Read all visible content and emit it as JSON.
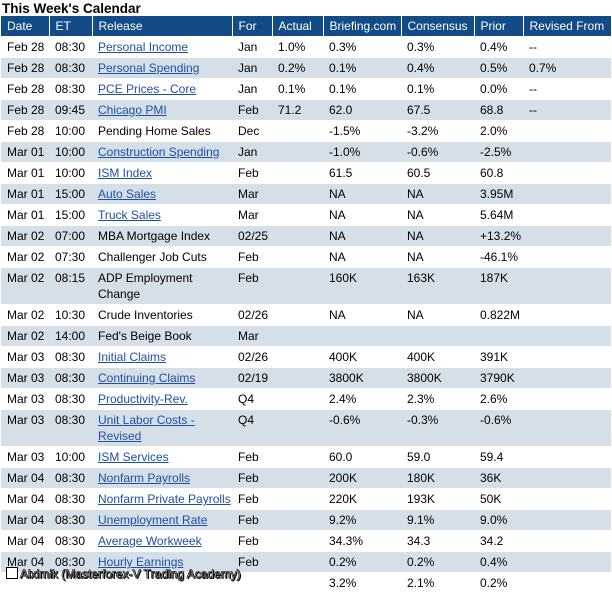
{
  "title": "This Week's Calendar",
  "columns": [
    "Date",
    "ET",
    "Release",
    "For",
    "Actual",
    "Briefing.com",
    "Consensus",
    "Prior",
    "Revised From"
  ],
  "rows": [
    {
      "date": "Feb 28",
      "et": "08:30",
      "release": "Personal Income",
      "link": true,
      "for": "Jan",
      "actual": "1.0%",
      "briefing": "0.3%",
      "consensus": "0.3%",
      "prior": "0.4%",
      "revised": "--"
    },
    {
      "date": "Feb 28",
      "et": "08:30",
      "release": "Personal Spending",
      "link": true,
      "for": "Jan",
      "actual": "0.2%",
      "briefing": "0.1%",
      "consensus": "0.4%",
      "prior": "0.5%",
      "revised": "0.7%"
    },
    {
      "date": "Feb 28",
      "et": "08:30",
      "release": "PCE Prices - Core",
      "link": true,
      "for": "Jan",
      "actual": "0.1%",
      "briefing": "0.1%",
      "consensus": "0.1%",
      "prior": "0.0%",
      "revised": "--"
    },
    {
      "date": "Feb 28",
      "et": "09:45",
      "release": "Chicago PMI",
      "link": true,
      "for": "Feb",
      "actual": "71.2",
      "briefing": "62.0",
      "consensus": "67.5",
      "prior": "68.8",
      "revised": "--"
    },
    {
      "date": "Feb 28",
      "et": "10:00",
      "release": "Pending Home Sales",
      "link": false,
      "for": "Dec",
      "actual": "",
      "briefing": "-1.5%",
      "consensus": "-3.2%",
      "prior": "2.0%",
      "revised": ""
    },
    {
      "date": "Mar 01",
      "et": "10:00",
      "release": "Construction Spending",
      "link": true,
      "for": "Jan",
      "actual": "",
      "briefing": "-1.0%",
      "consensus": "-0.6%",
      "prior": "-2.5%",
      "revised": ""
    },
    {
      "date": "Mar 01",
      "et": "10:00",
      "release": "ISM Index",
      "link": true,
      "for": "Feb",
      "actual": "",
      "briefing": "61.5",
      "consensus": "60.5",
      "prior": "60.8",
      "revised": ""
    },
    {
      "date": "Mar 01",
      "et": "15:00",
      "release": "Auto Sales",
      "link": true,
      "for": "Mar",
      "actual": "",
      "briefing": "NA",
      "consensus": "NA",
      "prior": "3.95M",
      "revised": ""
    },
    {
      "date": "Mar 01",
      "et": "15:00",
      "release": "Truck Sales",
      "link": true,
      "for": "Mar",
      "actual": "",
      "briefing": "NA",
      "consensus": "NA",
      "prior": "5.64M",
      "revised": ""
    },
    {
      "date": "Mar 02",
      "et": "07:00",
      "release": "MBA Mortgage Index",
      "link": false,
      "for": "02/25",
      "actual": "",
      "briefing": "NA",
      "consensus": "NA",
      "prior": "+13.2%",
      "revised": ""
    },
    {
      "date": "Mar 02",
      "et": "07:30",
      "release": "Challenger Job Cuts",
      "link": false,
      "for": "Feb",
      "actual": "",
      "briefing": "NA",
      "consensus": "NA",
      "prior": "-46.1%",
      "revised": ""
    },
    {
      "date": "Mar 02",
      "et": "08:15",
      "release": "ADP Employment Change",
      "link": false,
      "for": "Feb",
      "actual": "",
      "briefing": "160K",
      "consensus": "163K",
      "prior": "187K",
      "revised": ""
    },
    {
      "date": "Mar 02",
      "et": "10:30",
      "release": "Crude Inventories",
      "link": false,
      "for": "02/26",
      "actual": "",
      "briefing": "NA",
      "consensus": "NA",
      "prior": "0.822M",
      "revised": ""
    },
    {
      "date": "Mar 02",
      "et": "14:00",
      "release": "Fed's Beige Book",
      "link": false,
      "for": "Mar",
      "actual": "",
      "briefing": "",
      "consensus": "",
      "prior": "",
      "revised": ""
    },
    {
      "date": "Mar 03",
      "et": "08:30",
      "release": "Initial Claims",
      "link": true,
      "for": "02/26",
      "actual": "",
      "briefing": "400K",
      "consensus": "400K",
      "prior": "391K",
      "revised": ""
    },
    {
      "date": "Mar 03",
      "et": "08:30",
      "release": "Continuing Claims",
      "link": true,
      "for": "02/19",
      "actual": "",
      "briefing": "3800K",
      "consensus": "3800K",
      "prior": "3790K",
      "revised": ""
    },
    {
      "date": "Mar 03",
      "et": "08:30",
      "release": "Productivity-Rev.",
      "link": true,
      "for": "Q4",
      "actual": "",
      "briefing": "2.4%",
      "consensus": "2.3%",
      "prior": "2.6%",
      "revised": ""
    },
    {
      "date": "Mar 03",
      "et": "08:30",
      "release": "Unit Labor Costs - Revised",
      "link": true,
      "for": "Q4",
      "actual": "",
      "briefing": "-0.6%",
      "consensus": "-0.3%",
      "prior": "-0.6%",
      "revised": ""
    },
    {
      "date": "Mar 03",
      "et": "10:00",
      "release": "ISM Services",
      "link": true,
      "for": "Feb",
      "actual": "",
      "briefing": "60.0",
      "consensus": "59.0",
      "prior": "59.4",
      "revised": ""
    },
    {
      "date": "Mar 04",
      "et": "08:30",
      "release": "Nonfarm Payrolls",
      "link": true,
      "for": "Feb",
      "actual": "",
      "briefing": "200K",
      "consensus": "180K",
      "prior": "36K",
      "revised": ""
    },
    {
      "date": "Mar 04",
      "et": "08:30",
      "release": "Nonfarm Private Payrolls",
      "link": true,
      "for": "Feb",
      "actual": "",
      "briefing": "220K",
      "consensus": "193K",
      "prior": "50K",
      "revised": ""
    },
    {
      "date": "Mar 04",
      "et": "08:30",
      "release": "Unemployment Rate",
      "link": true,
      "for": "Feb",
      "actual": "",
      "briefing": "9.2%",
      "consensus": "9.1%",
      "prior": "9.0%",
      "revised": ""
    },
    {
      "date": "Mar 04",
      "et": "08:30",
      "release": "Average Workweek",
      "link": true,
      "for": "Feb",
      "actual": "",
      "briefing": "34.3%",
      "consensus": "34.3",
      "prior": "34.2",
      "revised": ""
    },
    {
      "date": "Mar 04",
      "et": "08:30",
      "release": "Hourly Earnings",
      "link": true,
      "for": "Feb",
      "actual": "",
      "briefing": "0.2%",
      "consensus": "0.2%",
      "prior": "0.4%",
      "revised": ""
    },
    {
      "date": "",
      "et": "",
      "release": "",
      "link": false,
      "for": "",
      "actual": "",
      "briefing": "3.2%",
      "consensus": "2.1%",
      "prior": "0.2%",
      "revised": ""
    }
  ],
  "watermark": "Alximik (Masterforex-V Trading Academy)",
  "colors": {
    "header_bg": "#134b86",
    "stripe": "#d5dfe8",
    "link": "#1f4fa3"
  }
}
